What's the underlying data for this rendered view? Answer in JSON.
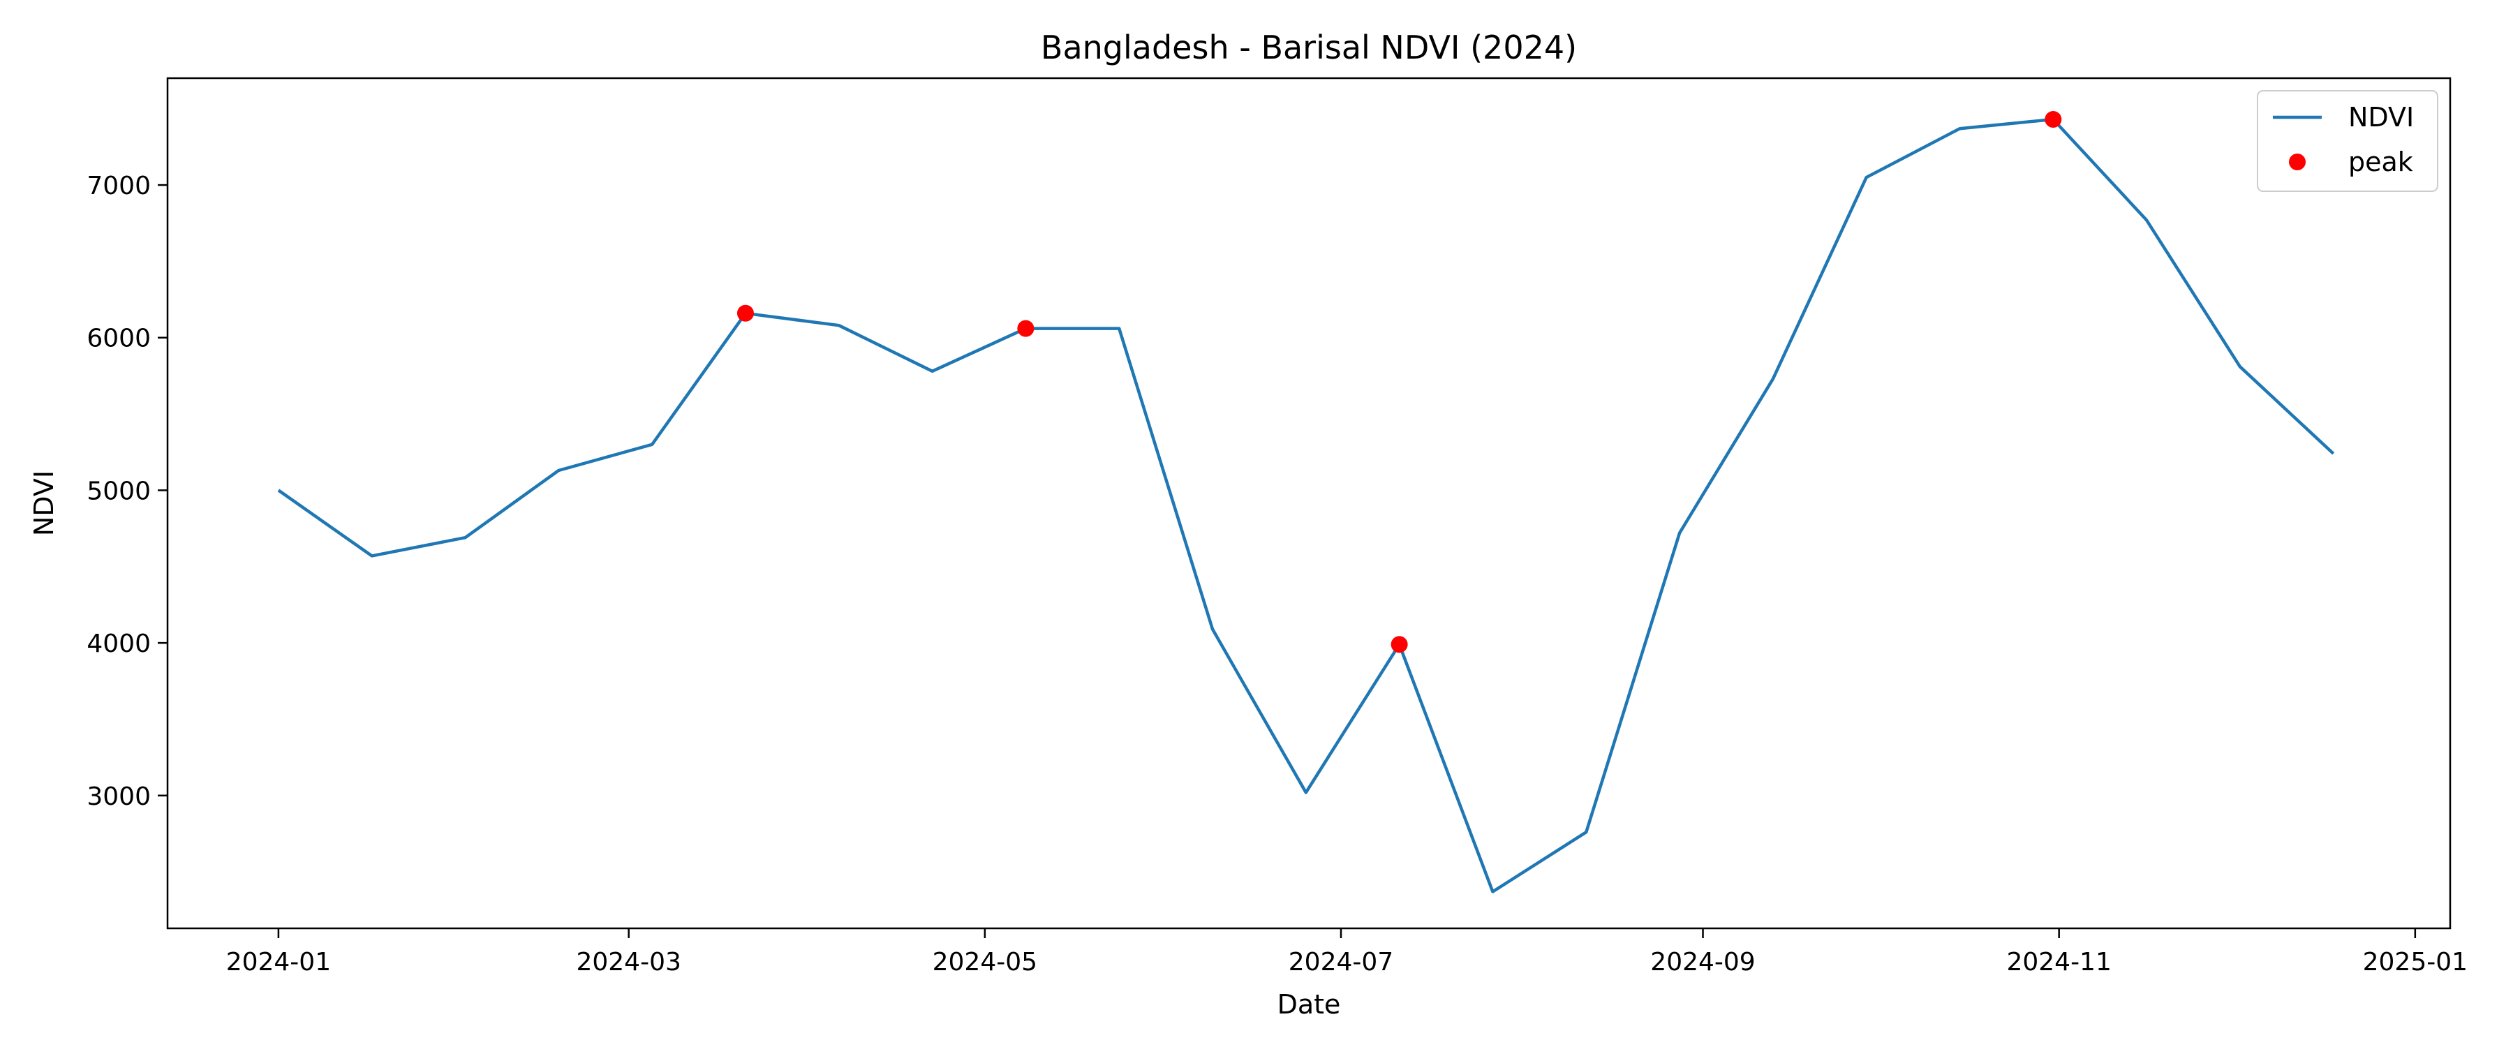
{
  "chart_data": {
    "type": "line",
    "title": "Bangladesh - Barisal NDVI (2024)",
    "xlabel": "Date",
    "ylabel": "NDVI",
    "grid": false,
    "legend_position": "top-right",
    "xlim": [
      "2023-12-13",
      "2025-01-07"
    ],
    "ylim": [
      2130,
      7700
    ],
    "x_ticks": [
      "2024-01",
      "2024-03",
      "2024-05",
      "2024-07",
      "2024-09",
      "2024-11",
      "2025-01"
    ],
    "x_tick_dates": [
      "2024-01-01",
      "2024-03-01",
      "2024-05-01",
      "2024-07-01",
      "2024-09-01",
      "2024-11-01",
      "2025-01-01"
    ],
    "y_ticks": [
      3000,
      4000,
      5000,
      6000,
      7000
    ],
    "series": [
      {
        "name": "NDVI",
        "kind": "line",
        "color": "#1f77b4",
        "x": [
          "2024-01-01",
          "2024-01-17",
          "2024-02-02",
          "2024-02-18",
          "2024-03-05",
          "2024-03-21",
          "2024-04-06",
          "2024-04-22",
          "2024-05-08",
          "2024-05-24",
          "2024-06-09",
          "2024-06-25",
          "2024-07-11",
          "2024-07-27",
          "2024-08-12",
          "2024-08-28",
          "2024-09-13",
          "2024-09-29",
          "2024-10-15",
          "2024-10-31",
          "2024-11-16",
          "2024-12-02",
          "2024-12-18"
        ],
        "y": [
          5000,
          4570,
          4690,
          5130,
          5300,
          6160,
          6080,
          5780,
          6060,
          6060,
          4090,
          3020,
          3990,
          2370,
          2760,
          4720,
          5730,
          7050,
          7370,
          7430,
          6770,
          5810,
          5240
        ]
      },
      {
        "name": "peak",
        "kind": "scatter",
        "color": "#ff0000",
        "x": [
          "2024-03-21",
          "2024-05-08",
          "2024-07-11",
          "2024-10-31"
        ],
        "y": [
          6160,
          6060,
          3990,
          7430
        ]
      }
    ]
  }
}
